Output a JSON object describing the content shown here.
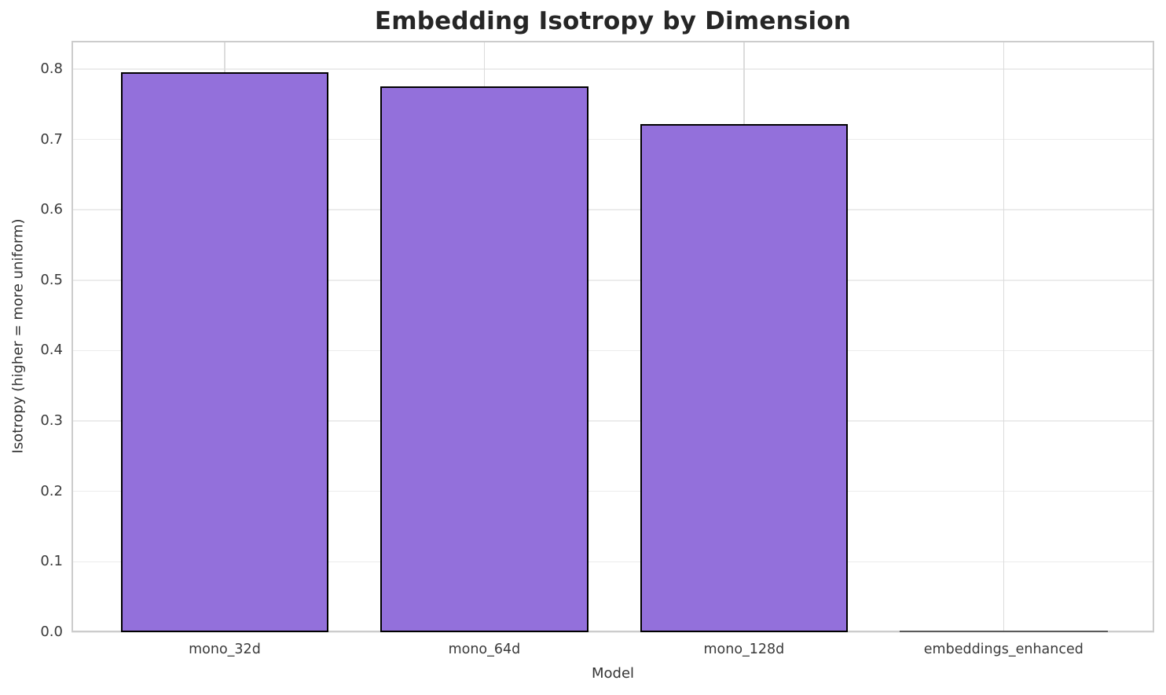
{
  "chart_data": {
    "type": "bar",
    "title": "Embedding Isotropy by Dimension",
    "xlabel": "Model",
    "ylabel": "Isotropy (higher = more uniform)",
    "categories": [
      "mono_32d",
      "mono_64d",
      "mono_128d",
      "embeddings_enhanced"
    ],
    "values": [
      0.795,
      0.775,
      0.722,
      0.001
    ],
    "ylim": [
      0,
      0.84
    ],
    "yticks": [
      0.0,
      0.1,
      0.2,
      0.3,
      0.4,
      0.5,
      0.6,
      0.7,
      0.8
    ],
    "xlim": [
      -0.59,
      3.58
    ],
    "bar_width_data_units": 0.8,
    "grid": true,
    "legend_position": "none",
    "colors": {
      "background": "#ffffff",
      "bar_fill": "#9370DB",
      "bar_edge": "#000000",
      "grid_horizontal": "#ececec",
      "grid_vertical": "#dcdcdc",
      "spine": "#cccccc",
      "title_text": "#262626",
      "tick_text": "#3a3a3a",
      "axis_label_text": "#333333"
    }
  }
}
